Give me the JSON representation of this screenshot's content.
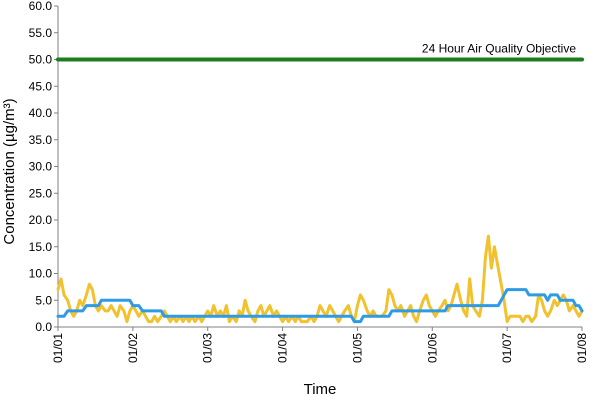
{
  "chart_data": {
    "type": "line",
    "title": "",
    "xlabel": "Time",
    "ylabel": "Concentration (µg/m³)",
    "ylim": [
      0,
      60
    ],
    "yticks": [
      "0.0",
      "5.0",
      "10.0",
      "15.0",
      "20.0",
      "25.0",
      "30.0",
      "35.0",
      "40.0",
      "45.0",
      "50.0",
      "55.0",
      "60.0"
    ],
    "xticks": [
      "01/01",
      "01/02",
      "01/03",
      "01/04",
      "01/05",
      "01/06",
      "01/07",
      "01/08"
    ],
    "xlim": [
      0,
      7
    ],
    "grid": false,
    "annotations": [
      {
        "text": "24 Hour Air Quality Objective",
        "y": 50
      }
    ],
    "colors": {
      "objective": "#1e7b1e",
      "hourly": "#f2c12e",
      "running_mean": "#2e9be6"
    },
    "series": [
      {
        "key": "objective",
        "points": [
          [
            0,
            50
          ],
          [
            7,
            50
          ]
        ]
      },
      {
        "key": "hourly",
        "points": [
          [
            0.0,
            7
          ],
          [
            0.04,
            9
          ],
          [
            0.08,
            6
          ],
          [
            0.13,
            5
          ],
          [
            0.17,
            3
          ],
          [
            0.21,
            2
          ],
          [
            0.25,
            3
          ],
          [
            0.29,
            5
          ],
          [
            0.33,
            4
          ],
          [
            0.38,
            6
          ],
          [
            0.42,
            8
          ],
          [
            0.46,
            7
          ],
          [
            0.5,
            4
          ],
          [
            0.54,
            3
          ],
          [
            0.58,
            4
          ],
          [
            0.63,
            3
          ],
          [
            0.67,
            3
          ],
          [
            0.71,
            4
          ],
          [
            0.75,
            3
          ],
          [
            0.79,
            2
          ],
          [
            0.83,
            4
          ],
          [
            0.88,
            3
          ],
          [
            0.92,
            1
          ],
          [
            0.96,
            3
          ],
          [
            1.0,
            4
          ],
          [
            1.04,
            3
          ],
          [
            1.08,
            2
          ],
          [
            1.13,
            3
          ],
          [
            1.17,
            2
          ],
          [
            1.21,
            1
          ],
          [
            1.25,
            1
          ],
          [
            1.29,
            2
          ],
          [
            1.33,
            1
          ],
          [
            1.38,
            2
          ],
          [
            1.42,
            3
          ],
          [
            1.46,
            2
          ],
          [
            1.5,
            1
          ],
          [
            1.54,
            2
          ],
          [
            1.58,
            1
          ],
          [
            1.63,
            2
          ],
          [
            1.67,
            1
          ],
          [
            1.71,
            2
          ],
          [
            1.75,
            1
          ],
          [
            1.79,
            2
          ],
          [
            1.83,
            1
          ],
          [
            1.88,
            2
          ],
          [
            1.92,
            1
          ],
          [
            1.96,
            2
          ],
          [
            2.0,
            3
          ],
          [
            2.04,
            2
          ],
          [
            2.08,
            4
          ],
          [
            2.13,
            2
          ],
          [
            2.17,
            3
          ],
          [
            2.21,
            2
          ],
          [
            2.25,
            4
          ],
          [
            2.29,
            1
          ],
          [
            2.33,
            2
          ],
          [
            2.38,
            1
          ],
          [
            2.42,
            3
          ],
          [
            2.46,
            2
          ],
          [
            2.5,
            5
          ],
          [
            2.54,
            3
          ],
          [
            2.58,
            2
          ],
          [
            2.63,
            1
          ],
          [
            2.67,
            3
          ],
          [
            2.71,
            4
          ],
          [
            2.75,
            2
          ],
          [
            2.79,
            3
          ],
          [
            2.83,
            4
          ],
          [
            2.88,
            2
          ],
          [
            2.92,
            3
          ],
          [
            2.96,
            2
          ],
          [
            3.0,
            1
          ],
          [
            3.04,
            2
          ],
          [
            3.08,
            1
          ],
          [
            3.13,
            2
          ],
          [
            3.17,
            1
          ],
          [
            3.21,
            2
          ],
          [
            3.25,
            1
          ],
          [
            3.29,
            1
          ],
          [
            3.33,
            1
          ],
          [
            3.38,
            2
          ],
          [
            3.42,
            1
          ],
          [
            3.46,
            2
          ],
          [
            3.5,
            4
          ],
          [
            3.54,
            3
          ],
          [
            3.58,
            2
          ],
          [
            3.63,
            4
          ],
          [
            3.67,
            3
          ],
          [
            3.71,
            2
          ],
          [
            3.75,
            1
          ],
          [
            3.79,
            2
          ],
          [
            3.83,
            3
          ],
          [
            3.88,
            4
          ],
          [
            3.92,
            2
          ],
          [
            3.96,
            1
          ],
          [
            4.0,
            4
          ],
          [
            4.04,
            6
          ],
          [
            4.08,
            5
          ],
          [
            4.13,
            3
          ],
          [
            4.17,
            2
          ],
          [
            4.21,
            3
          ],
          [
            4.25,
            2
          ],
          [
            4.29,
            2
          ],
          [
            4.33,
            2
          ],
          [
            4.38,
            3
          ],
          [
            4.42,
            7
          ],
          [
            4.46,
            6
          ],
          [
            4.5,
            4
          ],
          [
            4.54,
            3
          ],
          [
            4.58,
            4
          ],
          [
            4.63,
            2
          ],
          [
            4.67,
            3
          ],
          [
            4.71,
            4
          ],
          [
            4.75,
            2
          ],
          [
            4.79,
            1
          ],
          [
            4.83,
            3
          ],
          [
            4.88,
            5
          ],
          [
            4.92,
            6
          ],
          [
            4.96,
            4
          ],
          [
            5.0,
            3
          ],
          [
            5.04,
            2
          ],
          [
            5.08,
            3
          ],
          [
            5.13,
            4
          ],
          [
            5.17,
            5
          ],
          [
            5.21,
            3
          ],
          [
            5.25,
            4
          ],
          [
            5.29,
            6
          ],
          [
            5.33,
            8
          ],
          [
            5.38,
            5
          ],
          [
            5.42,
            3
          ],
          [
            5.46,
            2
          ],
          [
            5.5,
            9
          ],
          [
            5.54,
            4
          ],
          [
            5.58,
            3
          ],
          [
            5.63,
            2
          ],
          [
            5.67,
            5
          ],
          [
            5.71,
            13
          ],
          [
            5.75,
            17
          ],
          [
            5.79,
            11
          ],
          [
            5.83,
            15
          ],
          [
            5.88,
            11
          ],
          [
            5.92,
            8
          ],
          [
            5.96,
            5
          ],
          [
            6.0,
            1
          ],
          [
            6.04,
            2
          ],
          [
            6.08,
            2
          ],
          [
            6.13,
            2
          ],
          [
            6.17,
            2
          ],
          [
            6.21,
            1
          ],
          [
            6.25,
            2
          ],
          [
            6.29,
            2
          ],
          [
            6.33,
            1
          ],
          [
            6.38,
            2
          ],
          [
            6.42,
            6
          ],
          [
            6.46,
            5
          ],
          [
            6.5,
            3
          ],
          [
            6.54,
            2
          ],
          [
            6.58,
            3
          ],
          [
            6.63,
            5
          ],
          [
            6.67,
            4
          ],
          [
            6.71,
            5
          ],
          [
            6.75,
            6
          ],
          [
            6.79,
            5
          ],
          [
            6.83,
            3
          ],
          [
            6.88,
            4
          ],
          [
            6.92,
            3
          ],
          [
            6.96,
            2
          ],
          [
            7.0,
            3
          ]
        ]
      },
      {
        "key": "running_mean",
        "points": [
          [
            0.0,
            2
          ],
          [
            0.08,
            2
          ],
          [
            0.13,
            3
          ],
          [
            0.33,
            3
          ],
          [
            0.38,
            4
          ],
          [
            0.54,
            4
          ],
          [
            0.58,
            5
          ],
          [
            0.96,
            5
          ],
          [
            1.0,
            4
          ],
          [
            1.08,
            4
          ],
          [
            1.13,
            3
          ],
          [
            1.38,
            3
          ],
          [
            1.42,
            2
          ],
          [
            3.92,
            2
          ],
          [
            3.96,
            1
          ],
          [
            4.04,
            1
          ],
          [
            4.08,
            2
          ],
          [
            4.42,
            2
          ],
          [
            4.46,
            3
          ],
          [
            5.17,
            3
          ],
          [
            5.21,
            4
          ],
          [
            5.88,
            4
          ],
          [
            5.92,
            5
          ],
          [
            5.96,
            6
          ],
          [
            6.0,
            7
          ],
          [
            6.25,
            7
          ],
          [
            6.29,
            6
          ],
          [
            6.5,
            6
          ],
          [
            6.54,
            5
          ],
          [
            6.58,
            6
          ],
          [
            6.67,
            6
          ],
          [
            6.71,
            5
          ],
          [
            6.88,
            5
          ],
          [
            6.92,
            4
          ],
          [
            6.96,
            4
          ],
          [
            7.0,
            3
          ]
        ]
      }
    ]
  }
}
